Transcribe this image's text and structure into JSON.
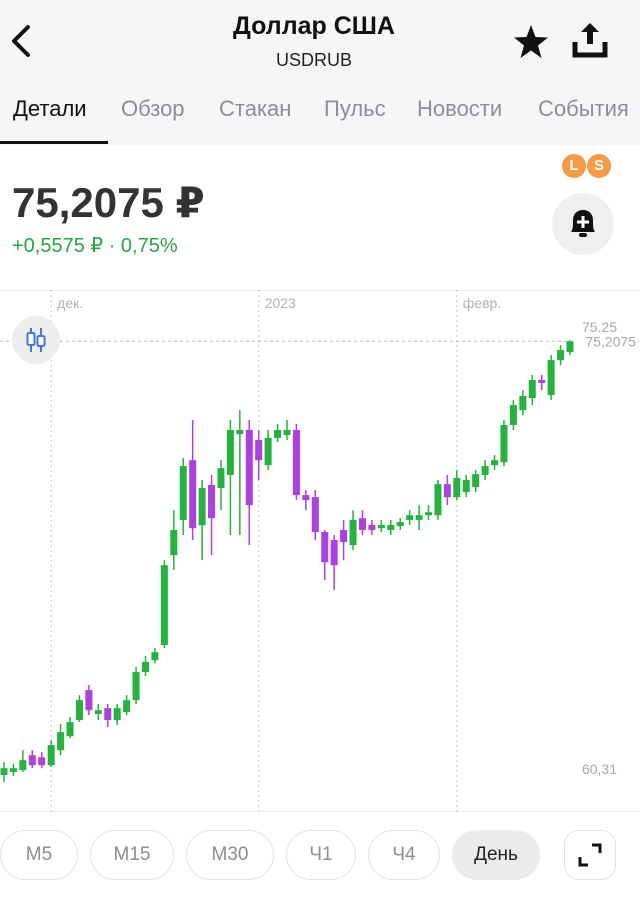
{
  "header": {
    "title": "Доллар США",
    "subtitle": "USDRUB"
  },
  "tabs": [
    "Детали",
    "Обзор",
    "Стакан",
    "Пульс",
    "Новости",
    "События"
  ],
  "quote": {
    "price": "75,2075 ₽",
    "change": "+0,5575 ₽ · 0,75%"
  },
  "badges": [
    "L",
    "S"
  ],
  "chart_data": {
    "type": "candlestick",
    "categories": [
      null,
      null,
      null,
      null,
      null,
      "дек.",
      null,
      null,
      null,
      null,
      null,
      null,
      null,
      null,
      null,
      null,
      null,
      null,
      null,
      null,
      null,
      null,
      null,
      null,
      null,
      null,
      null,
      "2023",
      null,
      null,
      null,
      null,
      null,
      null,
      null,
      null,
      null,
      null,
      null,
      null,
      null,
      null,
      null,
      null,
      null,
      null,
      null,
      null,
      "февр.",
      null,
      null,
      null,
      null,
      null,
      null,
      null,
      null,
      null,
      null,
      null,
      null
    ],
    "open": [
      60.55,
      60.65,
      60.72,
      61.22,
      61.15,
      60.88,
      61.39,
      61.86,
      62.41,
      63.42,
      62.61,
      62.81,
      62.41,
      62.68,
      63.08,
      64.03,
      64.43,
      64.94,
      67.98,
      69.17,
      71.19,
      68.99,
      70.35,
      70.25,
      70.69,
      72.07,
      72.21,
      71.87,
      71.02,
      71.94,
      72.04,
      72.21,
      70.01,
      69.94,
      68.76,
      68.49,
      68.83,
      68.32,
      69.23,
      69.0,
      68.89,
      68.83,
      68.96,
      69.17,
      69.17,
      69.33,
      69.33,
      70.38,
      69.94,
      70.11,
      70.28,
      70.69,
      71.02,
      71.12,
      72.38,
      72.88,
      73.29,
      73.9,
      73.39,
      74.57,
      74.84
    ],
    "high": [
      60.99,
      60.92,
      61.39,
      61.39,
      61.32,
      61.73,
      62.27,
      62.51,
      63.25,
      63.59,
      62.95,
      62.95,
      62.95,
      63.25,
      64.2,
      64.57,
      64.84,
      67.81,
      69.5,
      71.26,
      72.55,
      70.52,
      70.69,
      71.19,
      72.55,
      72.88,
      72.55,
      72.21,
      72.21,
      72.41,
      72.55,
      72.41,
      70.18,
      70.18,
      68.83,
      68.66,
      69.17,
      69.5,
      69.5,
      69.17,
      69.17,
      69.17,
      69.23,
      69.5,
      69.67,
      69.67,
      70.52,
      70.69,
      70.86,
      70.69,
      70.86,
      71.19,
      71.36,
      72.55,
      73.22,
      73.56,
      74.07,
      74.07,
      74.74,
      75.08,
      75.25
    ],
    "low": [
      60.31,
      60.52,
      60.65,
      60.78,
      60.78,
      60.82,
      61.22,
      61.8,
      62.34,
      62.58,
      62.41,
      62.17,
      62.24,
      62.58,
      62.95,
      63.9,
      64.33,
      64.84,
      67.48,
      68.66,
      68.49,
      67.81,
      67.98,
      69.5,
      68.66,
      68.66,
      68.32,
      70.52,
      70.86,
      71.8,
      71.87,
      69.84,
      69.5,
      68.49,
      67.14,
      66.8,
      67.81,
      68.15,
      68.66,
      68.66,
      68.76,
      68.66,
      68.83,
      69.0,
      68.83,
      69.17,
      69.17,
      69.67,
      69.84,
      69.94,
      70.11,
      70.52,
      70.86,
      70.99,
      72.21,
      72.71,
      73.05,
      73.56,
      73.22,
      74.4,
      74.74
    ],
    "close": [
      60.78,
      60.78,
      61.05,
      60.88,
      60.88,
      61.56,
      62.0,
      62.34,
      63.08,
      62.74,
      62.74,
      62.41,
      62.81,
      63.08,
      64.03,
      64.37,
      64.7,
      67.64,
      68.83,
      70.99,
      68.89,
      70.25,
      69.23,
      70.92,
      72.21,
      72.21,
      69.67,
      71.19,
      71.94,
      72.21,
      72.21,
      70.01,
      69.84,
      68.76,
      67.74,
      67.64,
      68.42,
      69.17,
      68.83,
      68.83,
      69.0,
      69.0,
      69.1,
      69.33,
      69.33,
      69.43,
      70.38,
      69.94,
      70.59,
      70.52,
      70.72,
      70.99,
      71.19,
      72.38,
      73.05,
      73.36,
      73.9,
      73.8,
      74.57,
      74.91,
      75.21
    ],
    "up_color": "#22b43c",
    "down_color": "#ad3fe4",
    "ylim": [
      59.3,
      76.94
    ],
    "yticks": [
      {
        "value": 75.25,
        "label": "75,25"
      },
      {
        "value": 60.31,
        "label": "60,31"
      }
    ],
    "last_price": {
      "value": 75.2075,
      "label": "75,2075"
    }
  },
  "timeframes": [
    "М5",
    "М15",
    "М30",
    "Ч1",
    "Ч4",
    "День"
  ]
}
